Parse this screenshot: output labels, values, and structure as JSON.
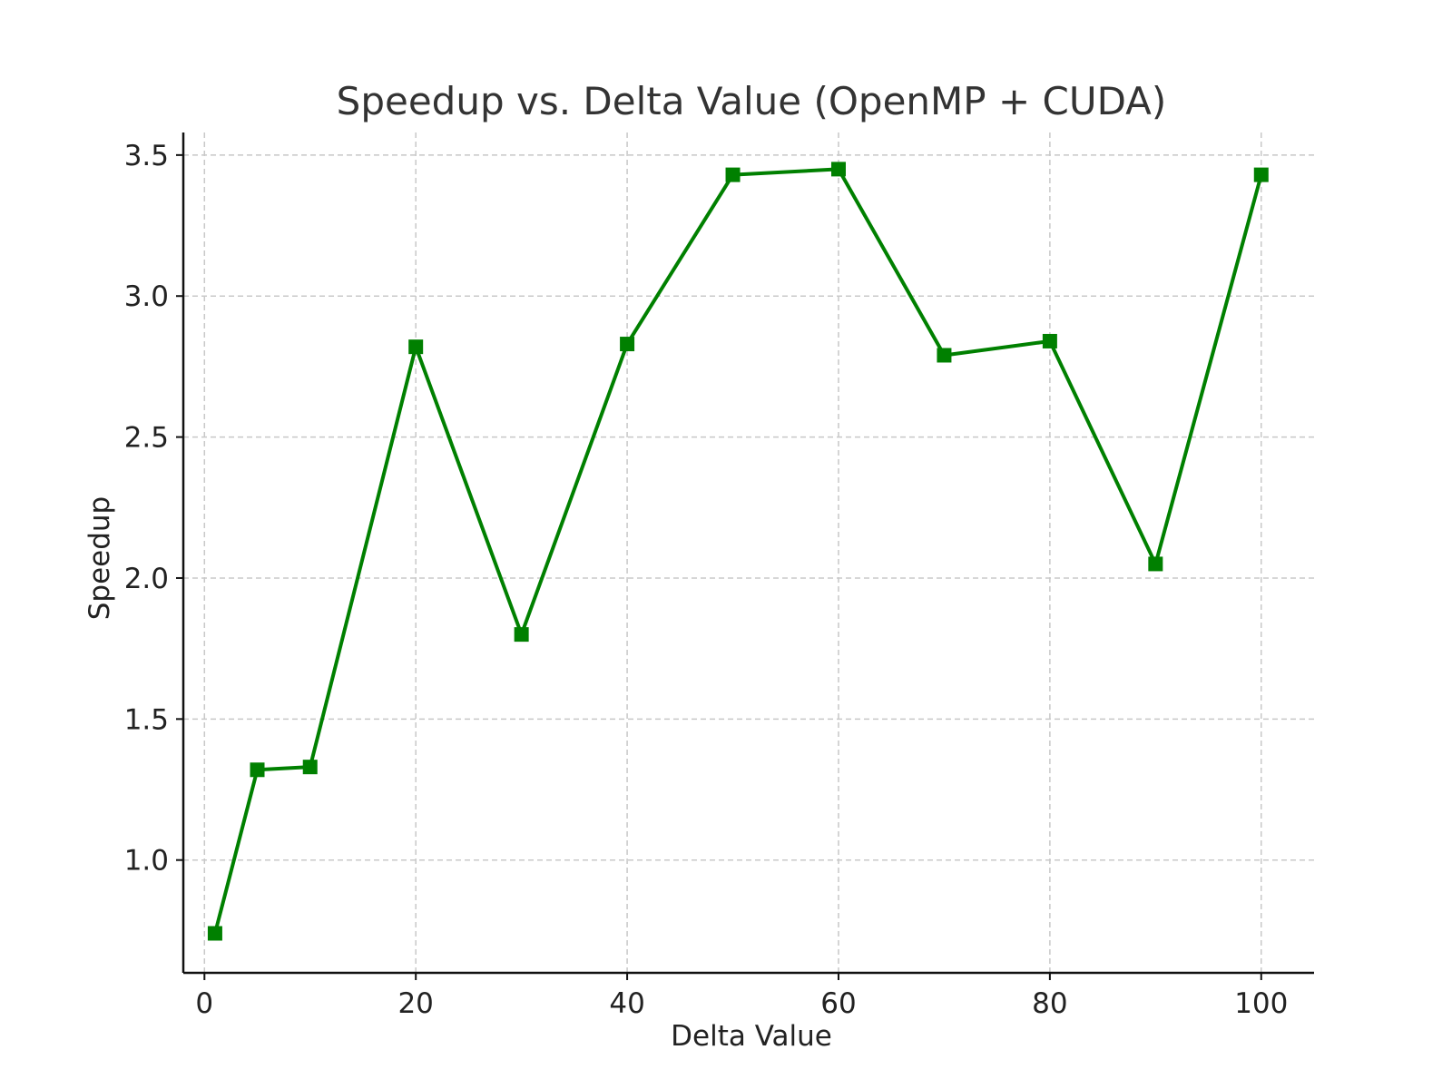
{
  "chart_data": {
    "type": "line",
    "title": "Speedup vs. Delta Value (OpenMP + CUDA)",
    "xlabel": "Delta Value",
    "ylabel": "Speedup",
    "xlim": [
      -2,
      105
    ],
    "ylim": [
      0.6,
      3.58
    ],
    "xticks": [
      0,
      20,
      40,
      60,
      80,
      100
    ],
    "yticks": [
      1.0,
      1.5,
      2.0,
      2.5,
      3.0,
      3.5
    ],
    "xtick_labels": [
      "0",
      "20",
      "40",
      "60",
      "80",
      "100"
    ],
    "ytick_labels": [
      "1.0",
      "1.5",
      "2.0",
      "2.5",
      "3.0",
      "3.5"
    ],
    "grid": true,
    "line_color": "#008000",
    "marker": "square",
    "series": [
      {
        "x": [
          1,
          5,
          10,
          20,
          30,
          40,
          50,
          60,
          70,
          80,
          90,
          100
        ],
        "values": [
          0.74,
          1.32,
          1.33,
          2.82,
          1.8,
          2.83,
          3.43,
          3.45,
          2.79,
          2.84,
          2.05,
          3.43
        ]
      }
    ]
  }
}
